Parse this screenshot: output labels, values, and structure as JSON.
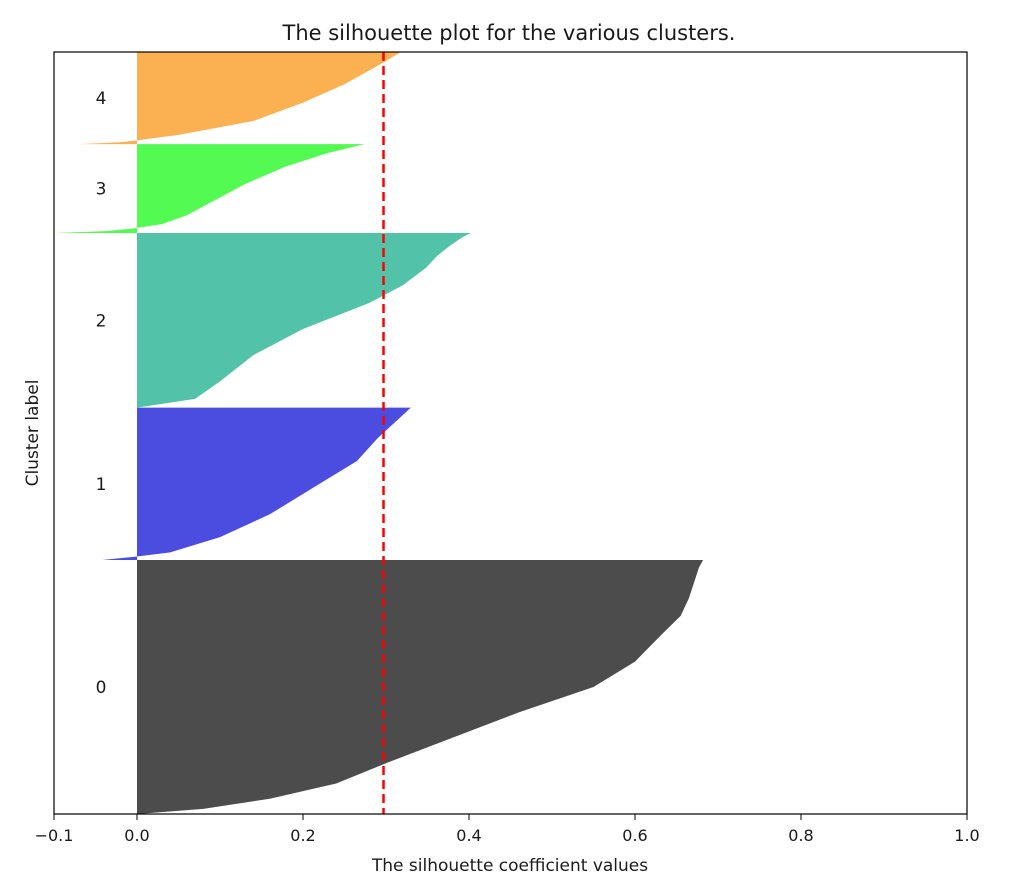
{
  "chart_data": {
    "type": "area",
    "title": "The silhouette plot for the various clusters.",
    "xlabel": "The silhouette coefficient values",
    "ylabel": "Cluster label",
    "xlim": [
      -0.1,
      1.0
    ],
    "xticks": [
      -0.1,
      0.0,
      0.2,
      0.4,
      0.6,
      0.8,
      1.0
    ],
    "xtick_labels": [
      "−0.1",
      "0.0",
      "0.2",
      "0.4",
      "0.6",
      "0.8",
      "1.0"
    ],
    "grid": false,
    "average_silhouette": 0.297,
    "average_line_color": "#ff0000",
    "clusters": [
      {
        "label": "0",
        "color": "#4c4c4c",
        "size": 400,
        "profile": [
          [
            0,
            0.0
          ],
          [
            0.02,
            0.08
          ],
          [
            0.06,
            0.16
          ],
          [
            0.12,
            0.24
          ],
          [
            0.2,
            0.3
          ],
          [
            0.3,
            0.38
          ],
          [
            0.4,
            0.46
          ],
          [
            0.5,
            0.55
          ],
          [
            0.6,
            0.6
          ],
          [
            0.7,
            0.63
          ],
          [
            0.78,
            0.655
          ],
          [
            0.85,
            0.665
          ],
          [
            0.92,
            0.672
          ],
          [
            0.97,
            0.677
          ],
          [
            1,
            0.682
          ]
        ]
      },
      {
        "label": "1",
        "color": "#4b4de0",
        "size": 240,
        "profile": [
          [
            0,
            -0.042
          ],
          [
            0.02,
            -0.005
          ],
          [
            0.05,
            0.04
          ],
          [
            0.15,
            0.1
          ],
          [
            0.3,
            0.16
          ],
          [
            0.5,
            0.22
          ],
          [
            0.65,
            0.265
          ],
          [
            0.8,
            0.29
          ],
          [
            0.9,
            0.31
          ],
          [
            1,
            0.33
          ]
        ]
      },
      {
        "label": "2",
        "color": "#52c2a8",
        "size": 275,
        "profile": [
          [
            0,
            0.0
          ],
          [
            0.05,
            0.07
          ],
          [
            0.15,
            0.1
          ],
          [
            0.3,
            0.14
          ],
          [
            0.45,
            0.2
          ],
          [
            0.6,
            0.28
          ],
          [
            0.7,
            0.32
          ],
          [
            0.8,
            0.348
          ],
          [
            0.87,
            0.362
          ],
          [
            0.92,
            0.375
          ],
          [
            0.97,
            0.39
          ],
          [
            1,
            0.402
          ]
        ]
      },
      {
        "label": "3",
        "color": "#52fa52",
        "size": 140,
        "profile": [
          [
            0,
            -0.1
          ],
          [
            0.02,
            -0.04
          ],
          [
            0.05,
            -0.005
          ],
          [
            0.1,
            0.03
          ],
          [
            0.2,
            0.06
          ],
          [
            0.35,
            0.09
          ],
          [
            0.55,
            0.13
          ],
          [
            0.75,
            0.18
          ],
          [
            0.9,
            0.23
          ],
          [
            1,
            0.274
          ]
        ]
      },
      {
        "label": "4",
        "color": "#fbb052",
        "size": 145,
        "profile": [
          [
            0,
            -0.07
          ],
          [
            0.02,
            -0.02
          ],
          [
            0.04,
            0.0
          ],
          [
            0.1,
            0.05
          ],
          [
            0.25,
            0.14
          ],
          [
            0.45,
            0.2
          ],
          [
            0.65,
            0.25
          ],
          [
            0.85,
            0.29
          ],
          [
            1,
            0.318
          ]
        ]
      }
    ]
  }
}
